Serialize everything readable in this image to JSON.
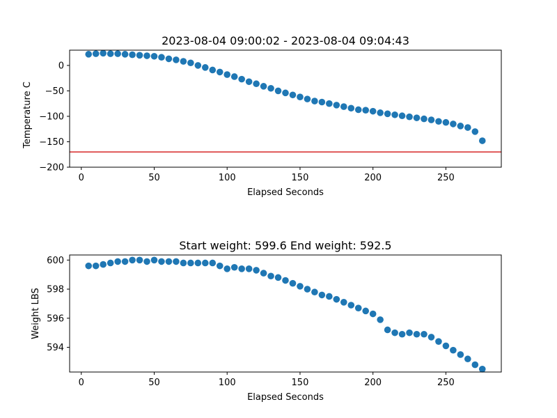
{
  "chart_data": [
    {
      "type": "scatter",
      "title": "2023-08-04 09:00:02 - 2023-08-04 09:04:43",
      "xlabel": "Elapsed Seconds",
      "ylabel": "Temperature C",
      "xlim": [
        -8,
        288
      ],
      "ylim": [
        -200,
        30
      ],
      "xticks": [
        0,
        50,
        100,
        150,
        200,
        250
      ],
      "yticks": [
        -200,
        -150,
        -100,
        -50,
        0
      ],
      "ytick_labels": [
        "−200",
        "−150",
        "−100",
        "−50",
        "0"
      ],
      "grid": false,
      "marker_color": "#1f77b4",
      "reference_line": {
        "y": -170,
        "color": "#d62728"
      },
      "series": [
        {
          "x": [
            5,
            10,
            15,
            20,
            25,
            30,
            35,
            40,
            45,
            50,
            55,
            60,
            65,
            70,
            75,
            80,
            85,
            90,
            95,
            100,
            105,
            110,
            115,
            120,
            125,
            130,
            135,
            140,
            145,
            150,
            155,
            160,
            165,
            170,
            175,
            180,
            185,
            190,
            195,
            200,
            205,
            210,
            215,
            220,
            225,
            230,
            235,
            240,
            245,
            250,
            255,
            260,
            265,
            270,
            275
          ],
          "y": [
            22,
            23,
            24,
            23,
            23,
            22,
            21,
            20,
            19,
            18,
            16,
            13,
            11,
            8,
            5,
            0,
            -4,
            -9,
            -13,
            -18,
            -22,
            -27,
            -32,
            -36,
            -41,
            -45,
            -50,
            -54,
            -58,
            -62,
            -66,
            -70,
            -72,
            -75,
            -78,
            -81,
            -84,
            -87,
            -88,
            -90,
            -93,
            -95,
            -97,
            -99,
            -101,
            -103,
            -105,
            -107,
            -110,
            -112,
            -115,
            -119,
            -122,
            -130,
            -148
          ]
        }
      ]
    },
    {
      "type": "scatter",
      "title": "Start weight: 599.6 End weight: 592.5",
      "xlabel": "Elapsed Seconds",
      "ylabel": "Weight LBS",
      "xlim": [
        -8,
        288
      ],
      "ylim": [
        592.3,
        600.35
      ],
      "xticks": [
        0,
        50,
        100,
        150,
        200,
        250
      ],
      "yticks": [
        594,
        596,
        598,
        600
      ],
      "grid": false,
      "marker_color": "#1f77b4",
      "series": [
        {
          "x": [
            5,
            10,
            15,
            20,
            25,
            30,
            35,
            40,
            45,
            50,
            55,
            60,
            65,
            70,
            75,
            80,
            85,
            90,
            95,
            100,
            105,
            110,
            115,
            120,
            125,
            130,
            135,
            140,
            145,
            150,
            155,
            160,
            165,
            170,
            175,
            180,
            185,
            190,
            195,
            200,
            205,
            210,
            215,
            220,
            225,
            230,
            235,
            240,
            245,
            250,
            255,
            260,
            265,
            270,
            275
          ],
          "y": [
            599.6,
            599.6,
            599.7,
            599.8,
            599.9,
            599.9,
            600.0,
            600.0,
            599.9,
            600.0,
            599.9,
            599.9,
            599.9,
            599.8,
            599.8,
            599.8,
            599.8,
            599.8,
            599.6,
            599.4,
            599.5,
            599.4,
            599.4,
            599.3,
            599.1,
            598.9,
            598.8,
            598.6,
            598.4,
            598.2,
            598.0,
            597.8,
            597.6,
            597.5,
            597.3,
            597.1,
            596.9,
            596.7,
            596.5,
            596.3,
            595.9,
            595.2,
            595.0,
            594.9,
            595.0,
            594.9,
            594.9,
            594.7,
            594.4,
            594.1,
            593.8,
            593.5,
            593.2,
            592.8,
            592.5
          ]
        }
      ]
    }
  ]
}
